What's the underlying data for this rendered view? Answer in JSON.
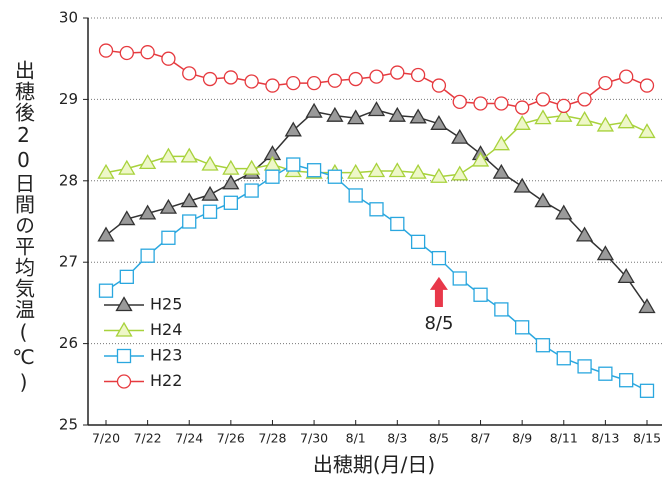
{
  "chart_data": {
    "type": "line",
    "y_label": "出穂後20日間の平均気温(℃)",
    "x_label": "出穂期(月/日)",
    "annotation": "8/5",
    "categories": [
      "7/20",
      null,
      "7/22",
      null,
      "7/24",
      null,
      "7/26",
      null,
      "7/28",
      null,
      "7/30",
      null,
      "8/1",
      null,
      "8/3",
      null,
      "8/5",
      null,
      "8/7",
      null,
      "8/9",
      null,
      "8/11",
      null,
      "8/13",
      null,
      "8/15"
    ],
    "ylim": [
      25,
      30
    ],
    "yticks": [
      25,
      26,
      27,
      28,
      29,
      30
    ],
    "grid": true,
    "legend": "lower left",
    "series": [
      {
        "name": "H25",
        "color": "#333333",
        "marker": "triangle",
        "marker_fill": "#9a9a9a",
        "values": [
          27.33,
          27.53,
          27.6,
          27.67,
          27.75,
          27.83,
          27.97,
          28.1,
          28.33,
          28.62,
          28.85,
          28.8,
          28.77,
          28.87,
          28.8,
          28.78,
          28.7,
          28.53,
          28.33,
          28.1,
          27.93,
          27.75,
          27.6,
          27.33,
          27.1,
          26.82,
          26.45
        ]
      },
      {
        "name": "H24",
        "color": "#a8d23c",
        "marker": "triangle",
        "marker_fill": "#eef7c8",
        "values": [
          28.1,
          28.15,
          28.22,
          28.3,
          28.3,
          28.2,
          28.15,
          28.15,
          28.2,
          28.12,
          28.1,
          28.1,
          28.1,
          28.12,
          28.12,
          28.1,
          28.05,
          28.08,
          28.25,
          28.45,
          28.7,
          28.77,
          28.8,
          28.75,
          28.68,
          28.72,
          28.6
        ]
      },
      {
        "name": "H23",
        "color": "#2aa7df",
        "marker": "square",
        "marker_fill": "#ffffff",
        "values": [
          26.65,
          26.82,
          27.08,
          27.3,
          27.5,
          27.62,
          27.73,
          27.88,
          28.05,
          28.2,
          28.13,
          28.05,
          27.82,
          27.65,
          27.47,
          27.25,
          27.05,
          26.8,
          26.6,
          26.42,
          26.2,
          25.98,
          25.82,
          25.72,
          25.63,
          25.55,
          25.42
        ]
      },
      {
        "name": "H22",
        "color": "#e63a3f",
        "marker": "circle",
        "marker_fill": "#ffffff",
        "values": [
          29.6,
          29.57,
          29.58,
          29.5,
          29.32,
          29.25,
          29.27,
          29.22,
          29.17,
          29.2,
          29.2,
          29.23,
          29.25,
          29.28,
          29.33,
          29.3,
          29.17,
          28.97,
          28.95,
          28.95,
          28.9,
          29.0,
          28.92,
          29.0,
          29.2,
          29.28,
          29.17
        ]
      }
    ]
  }
}
